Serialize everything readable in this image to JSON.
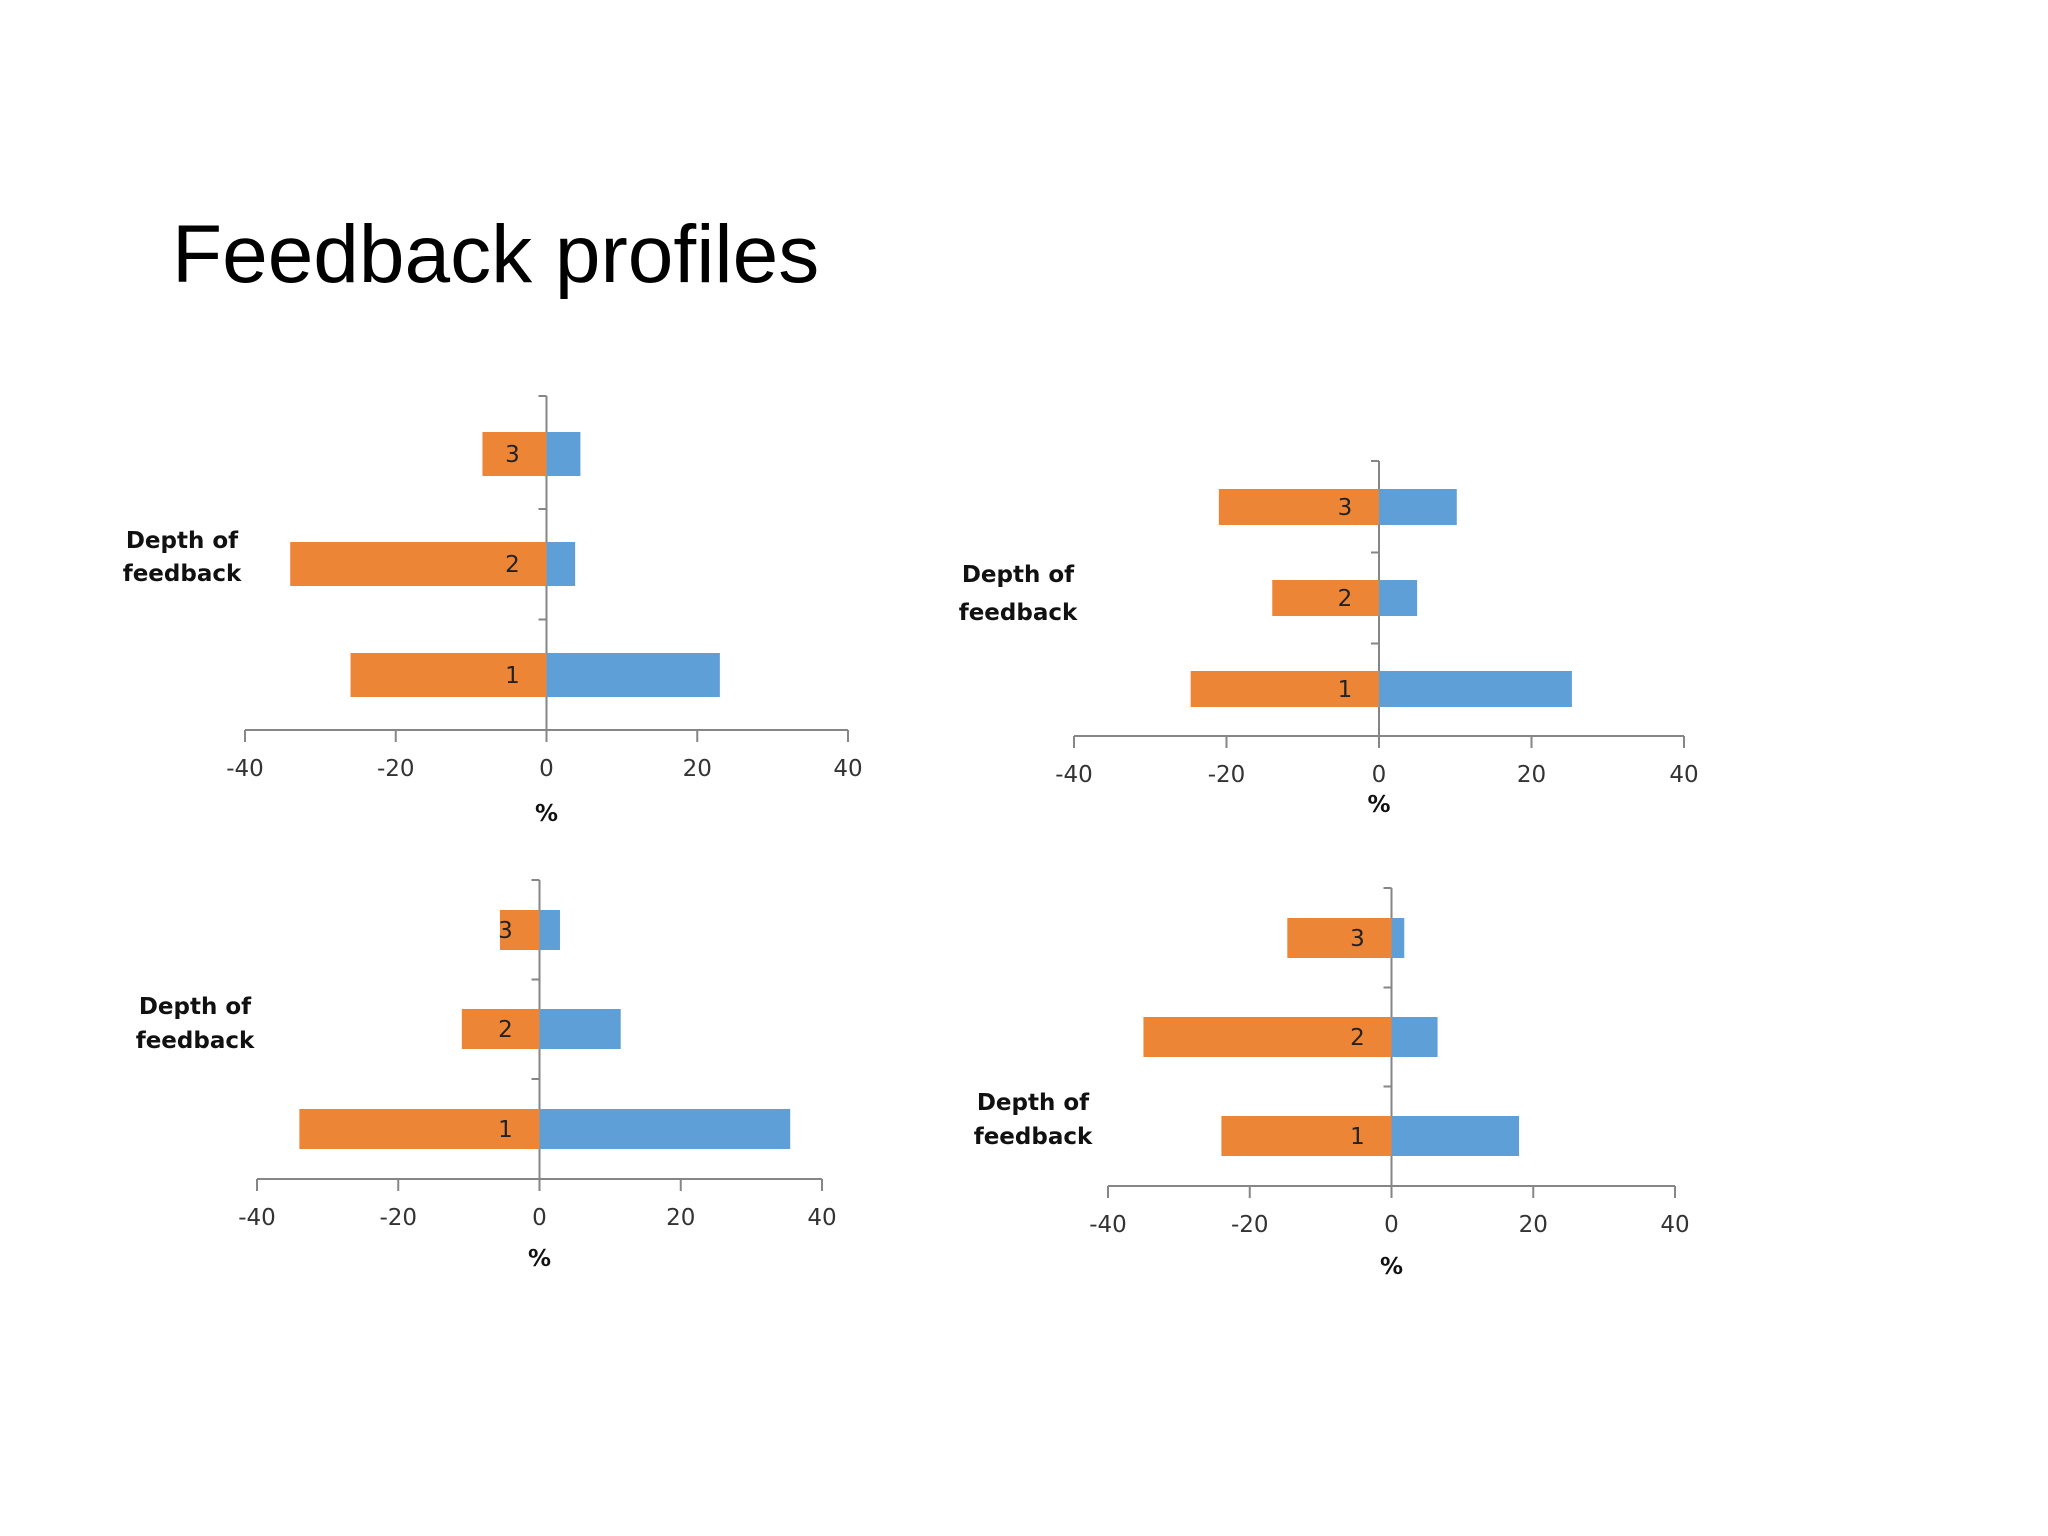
{
  "slide": {
    "title": "Feedback profiles"
  },
  "colors": {
    "negative": "#ED8537",
    "positive": "#5F9FD8",
    "axis": "#868686"
  },
  "chart_data": [
    {
      "type": "bar",
      "orientation": "horizontal",
      "ylabel": "Depth of feedback",
      "xlabel": "%",
      "xlim": [
        -40,
        40
      ],
      "xticks": [
        "-40",
        "-20",
        "0",
        "20",
        "40"
      ],
      "categories": [
        "1",
        "2",
        "3"
      ],
      "series": [
        {
          "values": [
            -26,
            -34,
            -8.5
          ]
        },
        {
          "values": [
            23,
            3.8,
            4.5
          ]
        }
      ]
    },
    {
      "type": "bar",
      "orientation": "horizontal",
      "ylabel": "Depth of feedback",
      "xlabel": "%",
      "xlim": [
        -40,
        40
      ],
      "xticks": [
        "-40",
        "-20",
        "0",
        "20",
        "40"
      ],
      "categories": [
        "1",
        "2",
        "3"
      ],
      "series": [
        {
          "values": [
            -24.7,
            -14,
            -21
          ]
        },
        {
          "values": [
            25.3,
            5,
            10.2
          ]
        }
      ]
    },
    {
      "type": "bar",
      "orientation": "horizontal",
      "ylabel": "Depth of feedback",
      "xlabel": "%",
      "xlim": [
        -40,
        40
      ],
      "xticks": [
        "-40",
        "-20",
        "0",
        "20",
        "40"
      ],
      "categories": [
        "1",
        "2",
        "3"
      ],
      "series": [
        {
          "values": [
            -34,
            -11,
            -5.6
          ]
        },
        {
          "values": [
            35.5,
            11.5,
            2.9
          ]
        }
      ]
    },
    {
      "type": "bar",
      "orientation": "horizontal",
      "ylabel": "Depth of feedback",
      "xlabel": "%",
      "xlim": [
        -40,
        40
      ],
      "xticks": [
        "-40",
        "-20",
        "0",
        "20",
        "40"
      ],
      "categories": [
        "1",
        "2",
        "3"
      ],
      "series": [
        {
          "values": [
            -24,
            -35,
            -14.7
          ]
        },
        {
          "values": [
            18,
            6.5,
            1.8
          ]
        }
      ]
    }
  ]
}
